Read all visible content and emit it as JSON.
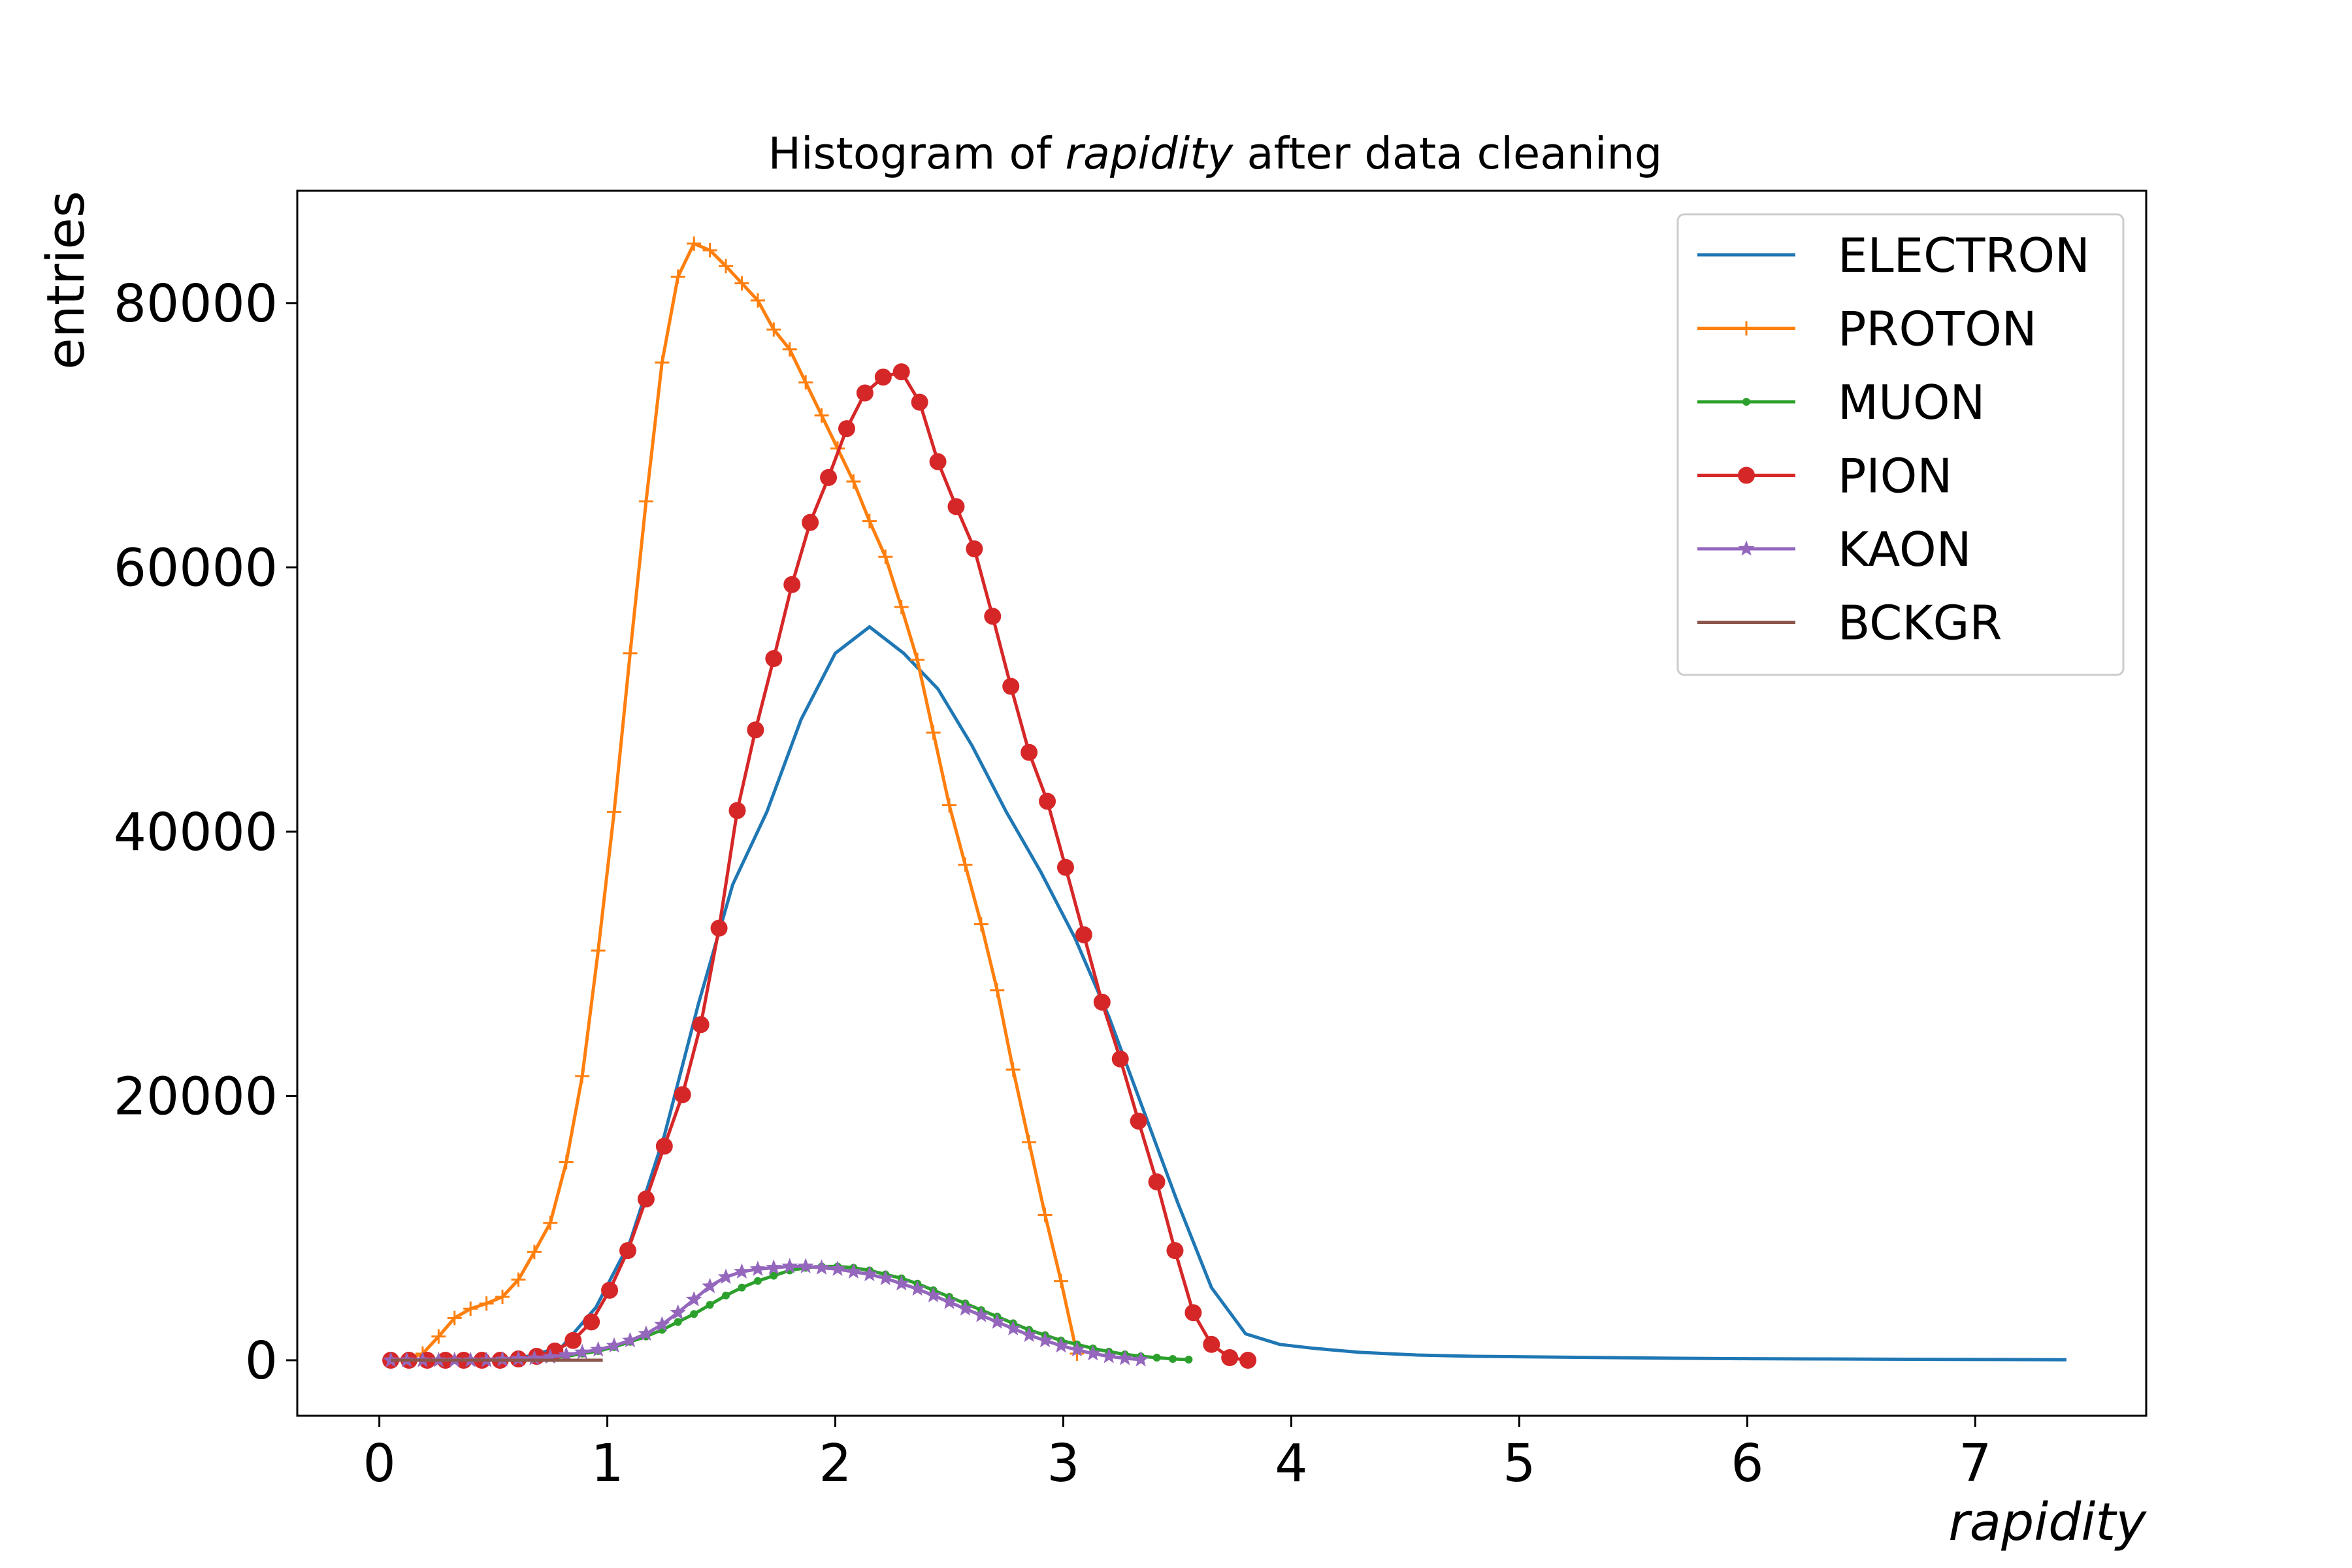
{
  "chart_data": {
    "type": "line",
    "title_prefix": "Histogram of ",
    "title_variable": "rapidity",
    "title_suffix": " after data cleaning",
    "xlabel": "rapidity",
    "ylabel": "entries",
    "xlim": [
      -0.36,
      7.75
    ],
    "ylim": [
      -4200,
      88500
    ],
    "xticks": [
      0,
      1,
      2,
      3,
      4,
      5,
      6,
      7
    ],
    "xtick_labels": [
      "0",
      "1",
      "2",
      "3",
      "4",
      "5",
      "6",
      "7"
    ],
    "yticks": [
      0,
      20000,
      40000,
      60000,
      80000
    ],
    "ytick_labels": [
      "0",
      "20000",
      "40000",
      "60000",
      "80000"
    ],
    "grid": false,
    "legend_position": "top-right",
    "series": [
      {
        "name": "ELECTRON",
        "color": "#1f77b4",
        "marker": "none",
        "x": [
          0.05,
          0.2,
          0.35,
          0.5,
          0.65,
          0.8,
          0.95,
          1.1,
          1.25,
          1.4,
          1.55,
          1.7,
          1.85,
          2.0,
          2.15,
          2.3,
          2.45,
          2.6,
          2.75,
          2.9,
          3.05,
          3.2,
          3.35,
          3.5,
          3.65,
          3.8,
          3.95,
          4.1,
          4.3,
          4.55,
          4.8,
          5.1,
          5.4,
          5.7,
          6.0,
          6.3,
          6.6,
          6.9,
          7.2,
          7.4
        ],
        "y": [
          0,
          0,
          0,
          0,
          300,
          1000,
          4000,
          9000,
          17000,
          27000,
          36000,
          41500,
          48500,
          53500,
          55500,
          53500,
          50800,
          46500,
          41500,
          37000,
          32000,
          26000,
          19000,
          12000,
          5500,
          2000,
          1200,
          900,
          600,
          400,
          300,
          250,
          200,
          150,
          120,
          100,
          80,
          60,
          50,
          40
        ]
      },
      {
        "name": "PROTON",
        "color": "#ff7f0e",
        "marker": "plus",
        "x": [
          0.05,
          0.12,
          0.19,
          0.26,
          0.33,
          0.4,
          0.47,
          0.54,
          0.61,
          0.68,
          0.75,
          0.82,
          0.89,
          0.96,
          1.03,
          1.1,
          1.17,
          1.24,
          1.31,
          1.38,
          1.45,
          1.52,
          1.59,
          1.66,
          1.73,
          1.8,
          1.87,
          1.94,
          2.01,
          2.08,
          2.15,
          2.22,
          2.29,
          2.36,
          2.43,
          2.5,
          2.57,
          2.64,
          2.71,
          2.78,
          2.85,
          2.92,
          2.99,
          3.06
        ],
        "y": [
          0,
          100,
          500,
          1800,
          3200,
          3900,
          4300,
          4800,
          6100,
          8200,
          10400,
          15000,
          21500,
          31000,
          41500,
          53500,
          65000,
          75500,
          82000,
          84500,
          84000,
          82800,
          81500,
          80200,
          78000,
          76500,
          74000,
          71500,
          69000,
          66500,
          63500,
          60800,
          57000,
          53000,
          47500,
          42000,
          37500,
          33000,
          28000,
          22000,
          16500,
          11000,
          6000,
          500
        ]
      },
      {
        "name": "MUON",
        "color": "#2ca02c",
        "marker": "point",
        "x": [
          0.05,
          0.12,
          0.19,
          0.26,
          0.33,
          0.4,
          0.47,
          0.54,
          0.61,
          0.68,
          0.75,
          0.82,
          0.89,
          0.96,
          1.03,
          1.1,
          1.17,
          1.24,
          1.31,
          1.38,
          1.45,
          1.52,
          1.59,
          1.66,
          1.73,
          1.8,
          1.87,
          1.94,
          2.01,
          2.08,
          2.15,
          2.22,
          2.29,
          2.36,
          2.43,
          2.5,
          2.57,
          2.64,
          2.71,
          2.78,
          2.85,
          2.92,
          2.99,
          3.06,
          3.13,
          3.2,
          3.27,
          3.34,
          3.41,
          3.48,
          3.55
        ],
        "y": [
          0,
          0,
          0,
          0,
          0,
          0,
          0,
          50,
          100,
          150,
          200,
          300,
          500,
          700,
          1000,
          1400,
          1800,
          2300,
          2900,
          3500,
          4200,
          4900,
          5500,
          6000,
          6400,
          6800,
          7000,
          7100,
          7100,
          7000,
          6800,
          6500,
          6200,
          5800,
          5300,
          4800,
          4300,
          3800,
          3300,
          2800,
          2300,
          1900,
          1500,
          1200,
          900,
          650,
          450,
          300,
          200,
          100,
          50
        ]
      },
      {
        "name": "PION",
        "color": "#d62728",
        "marker": "circle",
        "x": [
          0.05,
          0.13,
          0.21,
          0.29,
          0.37,
          0.45,
          0.53,
          0.61,
          0.69,
          0.77,
          0.85,
          0.93,
          1.01,
          1.09,
          1.17,
          1.25,
          1.33,
          1.41,
          1.49,
          1.57,
          1.65,
          1.73,
          1.81,
          1.89,
          1.97,
          2.05,
          2.13,
          2.21,
          2.29,
          2.37,
          2.45,
          2.53,
          2.61,
          2.69,
          2.77,
          2.85,
          2.93,
          3.01,
          3.09,
          3.17,
          3.25,
          3.33,
          3.41,
          3.49,
          3.57,
          3.65,
          3.73,
          3.81
        ],
        "y": [
          0,
          0,
          0,
          0,
          0,
          0,
          0,
          100,
          300,
          700,
          1500,
          2900,
          5300,
          8300,
          12200,
          16200,
          20100,
          25400,
          32700,
          41600,
          47700,
          53100,
          58700,
          63400,
          66800,
          70500,
          73200,
          74400,
          74800,
          72500,
          68000,
          64600,
          61400,
          56300,
          51000,
          46000,
          42300,
          37300,
          32200,
          27100,
          22800,
          18100,
          13500,
          8300,
          3600,
          1200,
          200,
          0
        ]
      },
      {
        "name": "KAON",
        "color": "#9467bd",
        "marker": "star",
        "x": [
          0.05,
          0.12,
          0.19,
          0.26,
          0.33,
          0.4,
          0.47,
          0.54,
          0.61,
          0.68,
          0.75,
          0.82,
          0.89,
          0.96,
          1.03,
          1.1,
          1.17,
          1.24,
          1.31,
          1.38,
          1.45,
          1.52,
          1.59,
          1.66,
          1.73,
          1.8,
          1.87,
          1.94,
          2.01,
          2.08,
          2.15,
          2.22,
          2.29,
          2.36,
          2.43,
          2.5,
          2.57,
          2.64,
          2.71,
          2.78,
          2.85,
          2.92,
          2.99,
          3.06,
          3.13,
          3.2,
          3.27,
          3.34
        ],
        "y": [
          0,
          0,
          0,
          0,
          0,
          0,
          0,
          50,
          100,
          150,
          250,
          400,
          600,
          800,
          1100,
          1500,
          2000,
          2700,
          3600,
          4600,
          5600,
          6300,
          6700,
          6900,
          7000,
          7100,
          7100,
          7000,
          6900,
          6700,
          6500,
          6200,
          5800,
          5400,
          4900,
          4400,
          3900,
          3400,
          2900,
          2400,
          1900,
          1500,
          1100,
          800,
          500,
          300,
          150,
          50
        ]
      },
      {
        "name": "BCKGR",
        "color": "#8c564b",
        "marker": "none",
        "x": [
          0.05,
          0.2,
          0.35,
          0.5,
          0.65,
          0.8,
          0.98
        ],
        "y": [
          0,
          0,
          0,
          0,
          0,
          0,
          0
        ]
      }
    ]
  }
}
